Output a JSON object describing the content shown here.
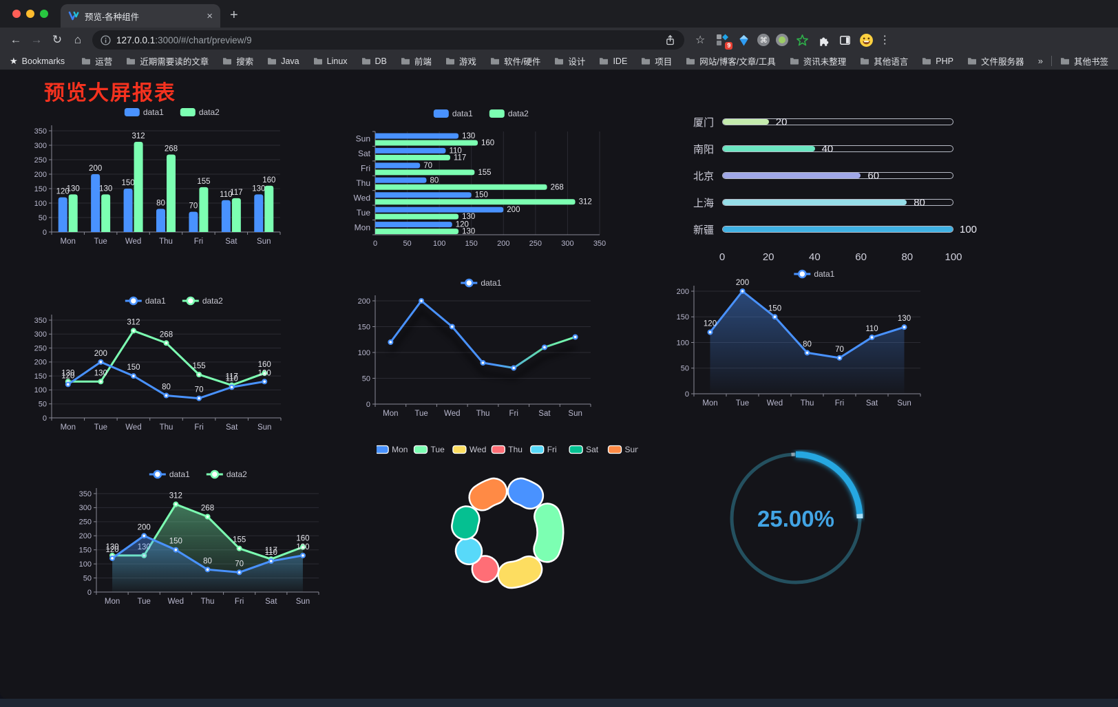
{
  "browser": {
    "tab": {
      "title": "预览-各种组件",
      "close": "×",
      "new_tab": "+"
    },
    "toolbar": {
      "back": "←",
      "forward": "→",
      "reload": "↻",
      "home": "⌂",
      "star": "☆",
      "menu": "⋮"
    },
    "address": {
      "host": "127.0.0.1",
      "path": ":3000/#/chart/preview/9"
    },
    "extensions": {
      "badge": "9",
      "cmd": "⌘"
    },
    "bookmarks": {
      "star_label": "Bookmarks",
      "folders": [
        "运营",
        "近期需要读的文章",
        "搜索",
        "Java",
        "Linux",
        "DB",
        "前端",
        "游戏",
        "软件/硬件",
        "设计",
        "IDE",
        "项目",
        "网站/博客/文章/工具",
        "资讯未整理",
        "其他语言",
        "PHP",
        "文件服务器"
      ],
      "overflow": "»",
      "other": "其他书签"
    }
  },
  "page": {
    "title": "预览大屏报表",
    "title_color": "#f5321f",
    "background": "#141419"
  },
  "palette": {
    "data1": "#4992ff",
    "data2": "#7cffb2",
    "axis_label": "#b9b8ce",
    "grid_line": "#2b2b33",
    "axis_line": "#8a8a96",
    "value_label": "#e4e4ea"
  },
  "chart_data": [
    {
      "id": "bar-vertical",
      "type": "bar",
      "categories": [
        "Mon",
        "Tue",
        "Wed",
        "Thu",
        "Fri",
        "Sat",
        "Sun"
      ],
      "series": [
        {
          "name": "data1",
          "color": "#4992ff",
          "values": [
            120,
            200,
            150,
            80,
            70,
            110,
            130
          ]
        },
        {
          "name": "data2",
          "color": "#7cffb2",
          "values": [
            130,
            130,
            312,
            268,
            155,
            117,
            160
          ]
        }
      ],
      "ylim": [
        0,
        350
      ],
      "ytick_step": 50,
      "legend_position": "top",
      "value_labels": true,
      "grid": true
    },
    {
      "id": "bar-horizontal",
      "type": "bar",
      "orientation": "horizontal",
      "note": "categories listed bottom-to-top",
      "categories": [
        "Mon",
        "Tue",
        "Wed",
        "Thu",
        "Fri",
        "Sat",
        "Sun"
      ],
      "series": [
        {
          "name": "data1",
          "color": "#4992ff",
          "values": [
            120,
            200,
            150,
            80,
            70,
            110,
            130
          ]
        },
        {
          "name": "data2",
          "color": "#7cffb2",
          "values": [
            130,
            130,
            312,
            268,
            155,
            117,
            160
          ]
        }
      ],
      "xlim": [
        0,
        350
      ],
      "xtick_step": 50,
      "legend_position": "top",
      "value_labels": true,
      "grid": true
    },
    {
      "id": "progress-bars",
      "type": "bar",
      "orientation": "horizontal-progress",
      "categories": [
        "厦门",
        "南阳",
        "北京",
        "上海",
        "新疆"
      ],
      "values": [
        20,
        40,
        60,
        80,
        100
      ],
      "colors": [
        "#c4ebad",
        "#6be6c1",
        "#a0a7e6",
        "#96dee8",
        "#3fb1e3"
      ],
      "xlim": [
        0,
        100
      ],
      "xticks": [
        0,
        20,
        40,
        60,
        80,
        100
      ],
      "value_labels": true
    },
    {
      "id": "line-two-series",
      "type": "line",
      "categories": [
        "Mon",
        "Tue",
        "Wed",
        "Thu",
        "Fri",
        "Sat",
        "Sun"
      ],
      "series": [
        {
          "name": "data1",
          "color": "#4992ff",
          "values": [
            120,
            200,
            150,
            80,
            70,
            110,
            130
          ]
        },
        {
          "name": "data2",
          "color": "#7cffb2",
          "values": [
            130,
            130,
            312,
            268,
            155,
            117,
            160
          ]
        }
      ],
      "ylim": [
        0,
        350
      ],
      "ytick_step": 50,
      "legend_position": "top",
      "value_labels": true,
      "grid": true
    },
    {
      "id": "line-gradient",
      "type": "line",
      "categories": [
        "Mon",
        "Tue",
        "Wed",
        "Thu",
        "Fri",
        "Sat",
        "Sun"
      ],
      "series": [
        {
          "name": "data1",
          "color": "#4992ff",
          "gradient": [
            "#4992ff",
            "#7cffb2"
          ],
          "values": [
            120,
            200,
            150,
            80,
            70,
            110,
            130
          ]
        }
      ],
      "ylim": [
        0,
        200
      ],
      "ytick_step": 50,
      "legend_position": "top",
      "value_labels": false,
      "grid": true
    },
    {
      "id": "area-single",
      "type": "area",
      "categories": [
        "Mon",
        "Tue",
        "Wed",
        "Thu",
        "Fri",
        "Sat",
        "Sun"
      ],
      "series": [
        {
          "name": "data1",
          "color": "#4992ff",
          "values": [
            120,
            200,
            150,
            80,
            70,
            110,
            130
          ]
        }
      ],
      "ylim": [
        0,
        200
      ],
      "ytick_step": 50,
      "legend_position": "top",
      "value_labels": true,
      "grid": true
    },
    {
      "id": "area-two-series",
      "type": "area",
      "categories": [
        "Mon",
        "Tue",
        "Wed",
        "Thu",
        "Fri",
        "Sat",
        "Sun"
      ],
      "series": [
        {
          "name": "data1",
          "color": "#4992ff",
          "values": [
            120,
            200,
            150,
            80,
            70,
            110,
            130
          ]
        },
        {
          "name": "data2",
          "color": "#7cffb2",
          "values": [
            130,
            130,
            312,
            268,
            155,
            117,
            160
          ]
        }
      ],
      "ylim": [
        0,
        350
      ],
      "ytick_step": 50,
      "legend_position": "top",
      "value_labels": true,
      "grid": true
    },
    {
      "id": "donut",
      "type": "pie",
      "categories": [
        "Mon",
        "Tue",
        "Wed",
        "Thu",
        "Fri",
        "Sat",
        "Sun"
      ],
      "values": [
        120,
        200,
        150,
        80,
        70,
        110,
        130
      ],
      "colors": [
        "#4992ff",
        "#7cffb2",
        "#fddd60",
        "#ff6e76",
        "#58d9f9",
        "#05c091",
        "#ff8a45"
      ],
      "inner_radius_ratio": 0.56,
      "legend_position": "top",
      "border_color": "#ffffff"
    },
    {
      "id": "gauge",
      "type": "gauge",
      "value": 25,
      "display": "25.00%",
      "color": "#28a7e1",
      "track_color": "#24505f",
      "text_color": "#42a4e4"
    }
  ]
}
